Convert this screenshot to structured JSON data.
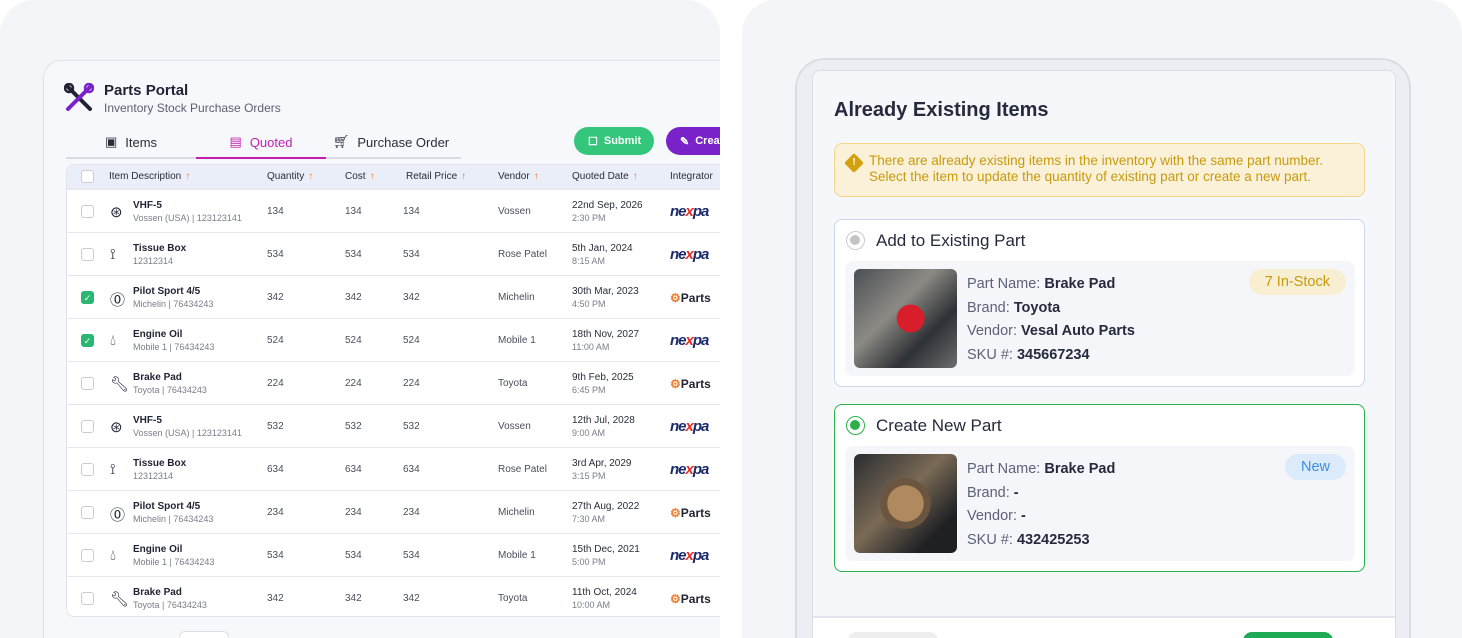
{
  "header": {
    "title": "Parts Portal",
    "subtitle": "Inventory Stock Purchase Orders"
  },
  "tabs": [
    {
      "label": "Items",
      "icon": "box-icon"
    },
    {
      "label": "Quoted",
      "icon": "receipt-icon",
      "active": true
    },
    {
      "label": "Purchase Order",
      "icon": "cart-icon"
    }
  ],
  "actions": {
    "submit": "Submit",
    "create": "Creat"
  },
  "columns": [
    "Item Description",
    "Quantity",
    "Cost",
    "Retail Price",
    "Vendor",
    "Quoted Date",
    "Integrator"
  ],
  "rows": [
    {
      "icon": "wheel-icon",
      "name": "VHF-5",
      "brand": "Vossen (USA)",
      "sku": "123123141",
      "qty": "134",
      "cost": "134",
      "retail": "134",
      "vendor": "Vossen",
      "date": "22nd Sep, 2026",
      "time": "2:30 PM",
      "integrator": "nexpart",
      "checked": false
    },
    {
      "icon": "seat-icon",
      "name": "Tissue Box",
      "brand": "",
      "sku": "12312314",
      "qty": "534",
      "cost": "534",
      "retail": "534",
      "vendor": "Rose Patel",
      "date": "5th Jan, 2024",
      "time": "8:15 AM",
      "integrator": "nexpart",
      "checked": false
    },
    {
      "icon": "tire-icon",
      "name": "Pilot Sport 4/5",
      "brand": "Michelin",
      "sku": "76434243",
      "qty": "342",
      "cost": "342",
      "retail": "342",
      "vendor": "Michelin",
      "date": "30th Mar, 2023",
      "time": "4:50 PM",
      "integrator": "partstech",
      "checked": true
    },
    {
      "icon": "oil-drop-icon",
      "name": "Engine Oil",
      "brand": "Mobile 1",
      "sku": "76434243",
      "qty": "524",
      "cost": "524",
      "retail": "524",
      "vendor": "Mobile 1",
      "date": "18th Nov, 2027",
      "time": "11:00 AM",
      "integrator": "nexpart",
      "checked": true
    },
    {
      "icon": "wrench-icon",
      "name": "Brake Pad",
      "brand": "Toyota",
      "sku": "76434243",
      "qty": "224",
      "cost": "224",
      "retail": "224",
      "vendor": "Toyota",
      "date": "9th Feb, 2025",
      "time": "6:45 PM",
      "integrator": "partstech",
      "checked": false
    },
    {
      "icon": "wheel-icon",
      "name": "VHF-5",
      "brand": "Vossen (USA)",
      "sku": "123123141",
      "qty": "532",
      "cost": "532",
      "retail": "532",
      "vendor": "Vossen",
      "date": "12th Jul, 2028",
      "time": "9:00 AM",
      "integrator": "nexpart",
      "checked": false
    },
    {
      "icon": "seat-icon",
      "name": "Tissue Box",
      "brand": "",
      "sku": "12312314",
      "qty": "634",
      "cost": "634",
      "retail": "634",
      "vendor": "Rose Patel",
      "date": "3rd Apr, 2029",
      "time": "3:15 PM",
      "integrator": "nexpart",
      "checked": false
    },
    {
      "icon": "tire-icon",
      "name": "Pilot Sport 4/5",
      "brand": "Michelin",
      "sku": "76434243",
      "qty": "234",
      "cost": "234",
      "retail": "234",
      "vendor": "Michelin",
      "date": "27th Aug, 2022",
      "time": "7:30 AM",
      "integrator": "partstech",
      "checked": false
    },
    {
      "icon": "oil-drop-icon",
      "name": "Engine Oil",
      "brand": "Mobile 1",
      "sku": "76434243",
      "qty": "534",
      "cost": "534",
      "retail": "534",
      "vendor": "Mobile 1",
      "date": "15th Dec, 2021",
      "time": "5:00 PM",
      "integrator": "nexpart",
      "checked": false
    },
    {
      "icon": "wrench-icon",
      "name": "Brake Pad",
      "brand": "Toyota",
      "sku": "76434243",
      "qty": "342",
      "cost": "342",
      "retail": "342",
      "vendor": "Toyota",
      "date": "11th Oct, 2024",
      "time": "10:00 AM",
      "integrator": "partstech",
      "checked": false
    }
  ],
  "integrators": {
    "nexpart": [
      "ne",
      "x",
      "pa"
    ],
    "partstech": "Parts"
  },
  "modal": {
    "title": "Already Existing Items",
    "alert": "There are already existing items in the inventory with the same part number. Select the item to update the quantity of existing part or create a new part.",
    "labels": {
      "part_name": "Part Name:",
      "brand": "Brand:",
      "vendor": "Vendor:",
      "sku": "SKU #:"
    },
    "options": [
      {
        "label": "Add to Existing Part",
        "selected": false,
        "part_name": "Brake Pad",
        "brand": "Toyota",
        "vendor": "Vesal Auto Parts",
        "sku": "345667234",
        "badge": "7 In-Stock"
      },
      {
        "label": "Create New Part",
        "selected": true,
        "part_name": "Brake Pad",
        "brand": "-",
        "vendor": "-",
        "sku": "432425253",
        "badge": "New"
      }
    ]
  },
  "colors": {
    "accent": "#c21fb0",
    "submit": "#34c77b",
    "create": "#7a22c9",
    "selected": "#2bb04a",
    "warning": "#c79a0d"
  }
}
